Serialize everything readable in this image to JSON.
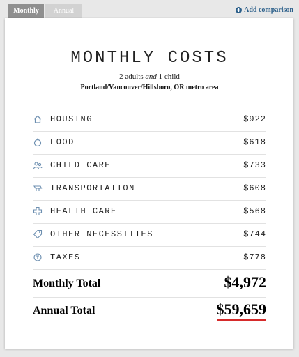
{
  "tabs": [
    "Monthly",
    "Annual"
  ],
  "add_comparison": "Add comparison",
  "title": "MONTHLY COSTS",
  "subtitle": {
    "adults": "2 adults",
    "and": "and",
    "child": "1 child"
  },
  "location": "Portland/Vancouver/Hillsboro, OR metro area",
  "rows": [
    {
      "label": "HOUSING",
      "amount": "$922"
    },
    {
      "label": "FOOD",
      "amount": "$618"
    },
    {
      "label": "CHILD CARE",
      "amount": "$733"
    },
    {
      "label": "TRANSPORTATION",
      "amount": "$608"
    },
    {
      "label": "HEALTH CARE",
      "amount": "$568"
    },
    {
      "label": "OTHER NECESSITIES",
      "amount": "$744"
    },
    {
      "label": "TAXES",
      "amount": "$778"
    }
  ],
  "totals": [
    {
      "label": "Monthly Total",
      "amount": "$4,972"
    },
    {
      "label": "Annual Total",
      "amount": "$59,659"
    }
  ]
}
